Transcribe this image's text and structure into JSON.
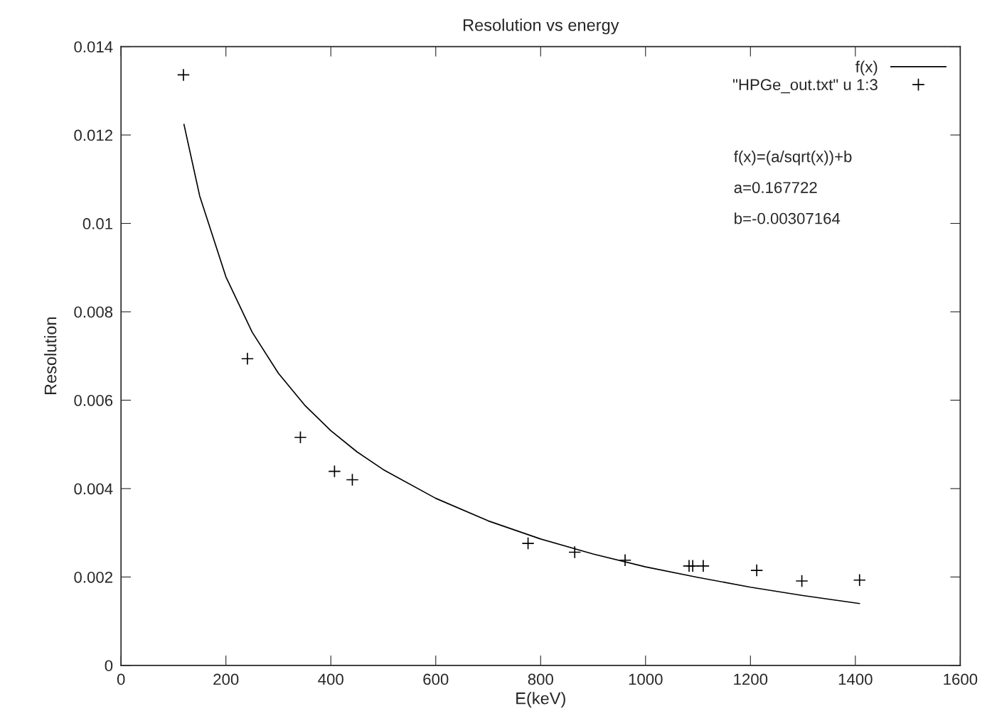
{
  "chart_data": {
    "type": "scatter",
    "title": "Resolution vs energy",
    "xlabel": "E(keV)",
    "ylabel": "Resolution",
    "xlim": [
      0,
      1600
    ],
    "xticks": [
      0,
      200,
      400,
      600,
      800,
      1000,
      1200,
      1400,
      1600
    ],
    "ylim": [
      0,
      0.014
    ],
    "yticks": [
      0,
      0.002,
      0.004,
      0.006,
      0.008,
      0.01,
      0.012,
      0.014
    ],
    "grid": false,
    "legend": "top right",
    "annotations": [
      "f(x)=(a/sqrt(x))+b",
      "a=0.167722",
      "b=-0.00307164"
    ],
    "series": [
      {
        "name": "f(x)",
        "type": "line",
        "color": "#000000",
        "marker": "none",
        "line_style": "solid",
        "x": [
          120,
          150,
          200,
          250,
          300,
          350,
          400,
          450,
          500,
          600,
          700,
          800,
          900,
          1000,
          1100,
          1200,
          1300,
          1408
        ],
        "values": [
          0.01224,
          0.01062,
          0.00879,
          0.00754,
          0.00661,
          0.00589,
          0.00531,
          0.00483,
          0.00443,
          0.00378,
          0.00327,
          0.00286,
          0.00252,
          0.00223,
          0.00199,
          0.00177,
          0.00158,
          0.0014
        ]
      },
      {
        "name": "\"HPGe_out.txt\" u 1:3",
        "color": "#000000",
        "marker": "cross",
        "x": [
          119,
          241,
          342,
          407,
          441,
          776,
          865,
          961,
          1083,
          1090,
          1110,
          1212,
          1298,
          1408
        ],
        "values": [
          0.01336,
          0.00694,
          0.00516,
          0.00439,
          0.0042,
          0.00276,
          0.00256,
          0.00238,
          0.00225,
          0.00225,
          0.00225,
          0.00215,
          0.00191,
          0.00193
        ]
      }
    ]
  }
}
